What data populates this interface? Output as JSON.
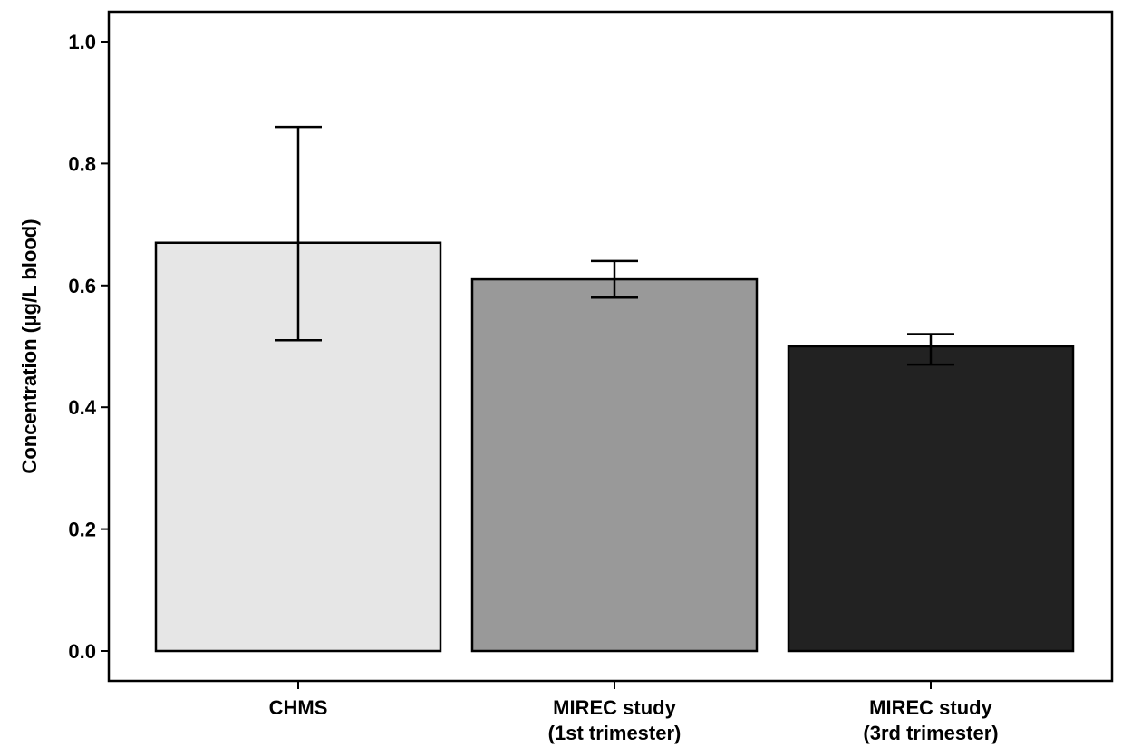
{
  "chart_data": {
    "type": "bar",
    "title": "",
    "xlabel": "",
    "ylabel": "Concentration (µg/L blood)",
    "ylim": [
      0,
      1.05
    ],
    "yticks": [
      "0.0",
      "0.2",
      "0.4",
      "0.6",
      "0.8",
      "1.0"
    ],
    "grid": false,
    "legend": false,
    "categories": [
      [
        "CHMS"
      ],
      [
        "MIREC study",
        "(1st trimester)"
      ],
      [
        "MIREC study",
        "(3rd trimester)"
      ]
    ],
    "values": [
      0.67,
      0.61,
      0.5
    ],
    "error_low": [
      0.51,
      0.58,
      0.47
    ],
    "error_high": [
      0.86,
      0.64,
      0.52
    ],
    "colors": [
      "#e6e6e6",
      "#999999",
      "#222222"
    ]
  }
}
